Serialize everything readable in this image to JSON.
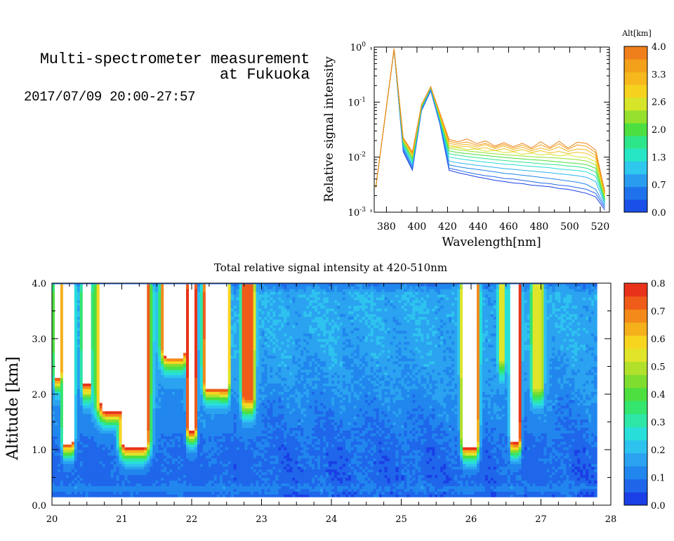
{
  "header": {
    "title_line1": "Multi-spectrometer measurement",
    "title_line2": "at Fukuoka",
    "date_range": "2017/07/09 20:00-27:57"
  },
  "chart_data": [
    {
      "type": "line",
      "xlabel": "Wavelength[nm]",
      "ylabel": "Relative signal intensity",
      "yscale": "log",
      "xlim": [
        372,
        526
      ],
      "ylim": [
        0.001,
        1
      ],
      "x_ticks": [
        380,
        400,
        420,
        440,
        460,
        480,
        500,
        520
      ],
      "y_ticks": [
        {
          "value": 1,
          "mantissa": "10",
          "exp": "0"
        },
        {
          "value": 0.1,
          "mantissa": "10",
          "exp": "-1"
        },
        {
          "value": 0.01,
          "mantissa": "10",
          "exp": "-2"
        },
        {
          "value": 0.001,
          "mantissa": "10",
          "exp": "-3"
        }
      ],
      "colorbar": {
        "title": "Alt[km]",
        "tick_labels": [
          "0.0",
          "0.7",
          "1.3",
          "2.0",
          "2.6",
          "3.3",
          "4.0"
        ],
        "colors": [
          "#1a4fe8",
          "#1f72ec",
          "#2a9cf0",
          "#2ec7ee",
          "#27e6c6",
          "#2ee68a",
          "#4ddf3f",
          "#96e12e",
          "#d7e52a",
          "#f6d21f",
          "#f6b81c",
          "#f3a01a",
          "#ef7f1a"
        ]
      },
      "x": [
        373,
        385,
        391,
        397,
        403,
        409,
        415,
        421,
        427,
        433,
        439,
        445,
        451,
        457,
        463,
        469,
        475,
        481,
        487,
        493,
        499,
        505,
        511,
        517,
        523
      ],
      "series": [
        {
          "altitude_km": 0.2,
          "color": "#1a3fe6",
          "values": [
            0.0028,
            0.88,
            0.0125,
            0.0058,
            0.07,
            0.16,
            0.04,
            0.0058,
            0.0052,
            0.0048,
            0.0044,
            0.0041,
            0.0038,
            0.0036,
            0.0034,
            0.0033,
            0.0031,
            0.003,
            0.0029,
            0.0027,
            0.0026,
            0.0024,
            0.0022,
            0.0019,
            0.0011
          ]
        },
        {
          "altitude_km": 0.5,
          "color": "#2566ea",
          "values": [
            0.0028,
            0.89,
            0.0135,
            0.0062,
            0.072,
            0.165,
            0.042,
            0.0063,
            0.0058,
            0.0053,
            0.0049,
            0.0046,
            0.0044,
            0.0041,
            0.004,
            0.0038,
            0.0036,
            0.0034,
            0.0033,
            0.0031,
            0.003,
            0.0028,
            0.0026,
            0.0022,
            0.0012
          ]
        },
        {
          "altitude_km": 0.8,
          "color": "#1f86ec",
          "values": [
            0.0028,
            0.9,
            0.0145,
            0.0067,
            0.075,
            0.17,
            0.044,
            0.0072,
            0.0067,
            0.0063,
            0.006,
            0.0057,
            0.0054,
            0.0051,
            0.0049,
            0.0047,
            0.0045,
            0.0043,
            0.0041,
            0.0039,
            0.0037,
            0.0035,
            0.0032,
            0.0026,
            0.0013
          ]
        },
        {
          "altitude_km": 1.1,
          "color": "#2bb4f0",
          "values": [
            0.0028,
            0.9,
            0.0155,
            0.0072,
            0.077,
            0.175,
            0.046,
            0.0085,
            0.0079,
            0.0075,
            0.0071,
            0.0068,
            0.0065,
            0.0062,
            0.006,
            0.0058,
            0.0056,
            0.0054,
            0.0052,
            0.005,
            0.0048,
            0.0046,
            0.0043,
            0.0036,
            0.0014
          ]
        },
        {
          "altitude_km": 1.4,
          "color": "#27dcd8",
          "values": [
            0.0028,
            0.91,
            0.0165,
            0.0078,
            0.079,
            0.18,
            0.048,
            0.01,
            0.0094,
            0.0089,
            0.0085,
            0.0081,
            0.0078,
            0.0075,
            0.0073,
            0.007,
            0.0068,
            0.0066,
            0.0064,
            0.0061,
            0.0059,
            0.0057,
            0.0054,
            0.0045,
            0.0015
          ]
        },
        {
          "altitude_km": 1.7,
          "color": "#2ee68f",
          "values": [
            0.0028,
            0.91,
            0.0175,
            0.0085,
            0.081,
            0.183,
            0.05,
            0.0115,
            0.0108,
            0.0103,
            0.0098,
            0.0094,
            0.009,
            0.0087,
            0.0084,
            0.0081,
            0.0079,
            0.0076,
            0.0074,
            0.0072,
            0.0069,
            0.0067,
            0.0063,
            0.0054,
            0.0016
          ]
        },
        {
          "altitude_km": 2.0,
          "color": "#4ddf3f",
          "values": [
            0.0028,
            0.92,
            0.0185,
            0.0092,
            0.083,
            0.186,
            0.052,
            0.013,
            0.0121,
            0.0116,
            0.0111,
            0.0107,
            0.0103,
            0.0099,
            0.0096,
            0.0093,
            0.009,
            0.0088,
            0.0085,
            0.0082,
            0.0079,
            0.0077,
            0.0073,
            0.0063,
            0.0017
          ]
        },
        {
          "altitude_km": 2.3,
          "color": "#96e12e",
          "values": [
            0.0028,
            0.92,
            0.0195,
            0.0098,
            0.085,
            0.188,
            0.054,
            0.0145,
            0.0136,
            0.013,
            0.0124,
            0.0119,
            0.0115,
            0.0111,
            0.0108,
            0.0105,
            0.0102,
            0.01,
            0.0098,
            0.0096,
            0.0093,
            0.009,
            0.0085,
            0.0073,
            0.0018
          ]
        },
        {
          "altitude_km": 2.6,
          "color": "#d7e52a",
          "values": [
            0.0028,
            0.93,
            0.0205,
            0.0105,
            0.087,
            0.19,
            0.056,
            0.0155,
            0.0147,
            0.0138,
            0.0141,
            0.0127,
            0.0133,
            0.0121,
            0.0125,
            0.0112,
            0.0119,
            0.0109,
            0.0114,
            0.0105,
            0.0111,
            0.0101,
            0.0098,
            0.0083,
            0.002
          ]
        },
        {
          "altitude_km": 3.0,
          "color": "#f0c21d",
          "values": [
            0.0028,
            0.93,
            0.021,
            0.011,
            0.088,
            0.19,
            0.058,
            0.0165,
            0.0152,
            0.0158,
            0.0141,
            0.0149,
            0.0132,
            0.0143,
            0.0127,
            0.0137,
            0.0122,
            0.0131,
            0.0119,
            0.0127,
            0.0116,
            0.0123,
            0.0117,
            0.0097,
            0.0021
          ]
        },
        {
          "altitude_km": 3.3,
          "color": "#f6b41c",
          "values": [
            0.0028,
            0.93,
            0.0215,
            0.0115,
            0.089,
            0.19,
            0.06,
            0.018,
            0.0165,
            0.0172,
            0.0152,
            0.0168,
            0.0143,
            0.016,
            0.0137,
            0.0151,
            0.0131,
            0.0147,
            0.0133,
            0.0154,
            0.0127,
            0.0141,
            0.0136,
            0.0108,
            0.0022
          ]
        },
        {
          "altitude_km": 3.6,
          "color": "#f39d1a",
          "values": [
            0.0028,
            0.93,
            0.022,
            0.012,
            0.09,
            0.19,
            0.062,
            0.0195,
            0.0178,
            0.0189,
            0.0164,
            0.0178,
            0.0151,
            0.0171,
            0.0146,
            0.0165,
            0.014,
            0.0168,
            0.0143,
            0.0175,
            0.0138,
            0.0167,
            0.0157,
            0.0121,
            0.0023
          ]
        },
        {
          "altitude_km": 3.9,
          "color": "#ef851a",
          "values": [
            0.0028,
            0.93,
            0.0225,
            0.0125,
            0.09,
            0.19,
            0.064,
            0.021,
            0.0191,
            0.0214,
            0.0176,
            0.0197,
            0.0159,
            0.0183,
            0.0154,
            0.0179,
            0.0147,
            0.0191,
            0.015,
            0.0194,
            0.0146,
            0.0187,
            0.0178,
            0.0135,
            0.0024
          ]
        }
      ]
    },
    {
      "type": "heatmap",
      "title": "Total relative signal intensity at 420-510nm",
      "ylabel": "Altitude [km]",
      "xlim": [
        20,
        28
      ],
      "ylim": [
        0,
        4
      ],
      "x_ticks": [
        "20",
        "21",
        "22",
        "23",
        "24",
        "25",
        "26",
        "27",
        "28"
      ],
      "y_ticks": [
        "0.0",
        "1.0",
        "2.0",
        "3.0",
        "4.0"
      ],
      "data_x_range": [
        20,
        27.8
      ],
      "data_y_range": [
        0.15,
        4.0
      ],
      "colorbar": {
        "range": [
          0,
          0.8
        ],
        "tick_labels": [
          "0.0",
          "0.1",
          "0.2",
          "0.3",
          "0.4",
          "0.5",
          "0.6",
          "0.7",
          "0.8"
        ],
        "colors": [
          "#1a3fe6",
          "#1f66ea",
          "#2186ee",
          "#2ba3f0",
          "#2ec3ef",
          "#28dfd9",
          "#2ee6a6",
          "#34e56e",
          "#4ddf3f",
          "#7fdd2f",
          "#b2e12c",
          "#e0e52a",
          "#f7d51f",
          "#f6b01c",
          "#f38a1a",
          "#ef5c19",
          "#e8331a"
        ],
        "saturated_color": "#ffffff"
      },
      "background_intensity": [
        {
          "alt_km": 0.15,
          "value": 0.05
        },
        {
          "alt_km": 0.3,
          "value": 0.11
        },
        {
          "alt_km": 0.45,
          "value": 0.07
        },
        {
          "alt_km": 1.0,
          "value": 0.08
        },
        {
          "alt_km": 1.6,
          "value": 0.11
        },
        {
          "alt_km": 2.2,
          "value": 0.14
        },
        {
          "alt_km": 3.0,
          "value": 0.17
        },
        {
          "alt_km": 3.8,
          "value": 0.18
        },
        {
          "alt_km": 4.0,
          "value": 0.1
        }
      ],
      "high_intensity_regions": [
        {
          "t_from": 20.02,
          "t_to": 20.15,
          "alt_bottom_km": 2.5,
          "peak": 0.9
        },
        {
          "t_from": 20.14,
          "t_to": 20.33,
          "alt_bottom_km": 1.3,
          "peak": 0.9
        },
        {
          "t_from": 20.42,
          "t_to": 20.58,
          "alt_bottom_km": 2.3,
          "peak": 0.7
        },
        {
          "t_from": 20.62,
          "t_to": 21.35,
          "alt_bottom_km": 1.9,
          "peak": 1.0
        },
        {
          "t_from": 20.95,
          "t_to": 21.42,
          "alt_bottom_km": 1.25,
          "peak": 1.0
        },
        {
          "t_from": 21.55,
          "t_to": 21.95,
          "alt_bottom_km": 2.9,
          "peak": 1.0
        },
        {
          "t_from": 21.92,
          "t_to": 22.08,
          "alt_bottom_km": 1.5,
          "peak": 0.8
        },
        {
          "t_from": 22.15,
          "t_to": 22.45,
          "alt_bottom_km": 2.3,
          "peak": 0.85
        },
        {
          "t_from": 22.38,
          "t_to": 22.55,
          "alt_bottom_km": 2.3,
          "peak": 0.9
        },
        {
          "t_from": 22.7,
          "t_to": 22.92,
          "alt_bottom_km": 2.0,
          "peak": 0.6
        },
        {
          "t_from": 25.85,
          "t_to": 26.12,
          "alt_bottom_km": 1.25,
          "peak": 1.0
        },
        {
          "t_from": 26.38,
          "t_to": 26.5,
          "alt_bottom_km": 2.7,
          "peak": 0.4
        },
        {
          "t_from": 26.55,
          "t_to": 26.72,
          "alt_bottom_km": 1.3,
          "peak": 0.85
        },
        {
          "t_from": 26.85,
          "t_to": 27.05,
          "alt_bottom_km": 2.2,
          "peak": 0.4
        }
      ]
    }
  ]
}
